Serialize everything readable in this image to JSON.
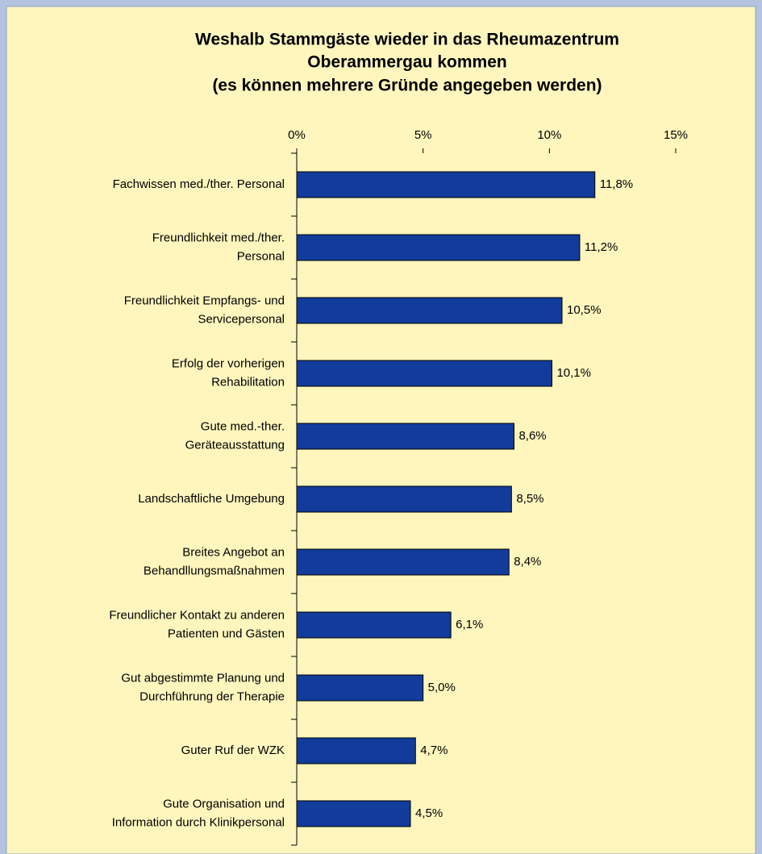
{
  "chart_data": {
    "type": "bar",
    "orientation": "horizontal",
    "title": [
      "Weshalb Stammgäste wieder in das Rheumazentrum",
      "Oberammergau kommen",
      "(es können mehrere Gründe angegeben werden)"
    ],
    "categories": [
      "Fachwissen med./ther. Personal",
      "Freundlichkeit med./ther. Personal",
      "Freundlichkeit Empfangs- und Servicepersonal",
      "Erfolg der vorherigen Rehabilitation",
      "Gute med.-ther. Geräteausstattung",
      "Landschaftliche Umgebung",
      "Breites Angebot an Behandllungsmaßnahmen",
      "Freundlicher Kontakt zu anderen Patienten und Gästen",
      "Gut abgestimmte Planung und Durchführung der Therapie",
      "Guter Ruf der WZK",
      "Gute Organisation und Information durch Klinikpersonal"
    ],
    "values": [
      11.8,
      11.2,
      10.5,
      10.1,
      8.6,
      8.5,
      8.4,
      6.1,
      5.0,
      4.7,
      4.5
    ],
    "value_labels": [
      "11,8%",
      "11,2%",
      "10,5%",
      "10,1%",
      "8,6%",
      "8,5%",
      "8,4%",
      "6,1%",
      "5,0%",
      "4,7%",
      "4,5%"
    ],
    "color": "#123c9c",
    "xlim": [
      0,
      15
    ],
    "xticks": [
      {
        "value": 0,
        "label": "0%"
      },
      {
        "value": 5,
        "label": "5%"
      },
      {
        "value": 10,
        "label": "10%"
      },
      {
        "value": 15,
        "label": "15%"
      }
    ]
  }
}
